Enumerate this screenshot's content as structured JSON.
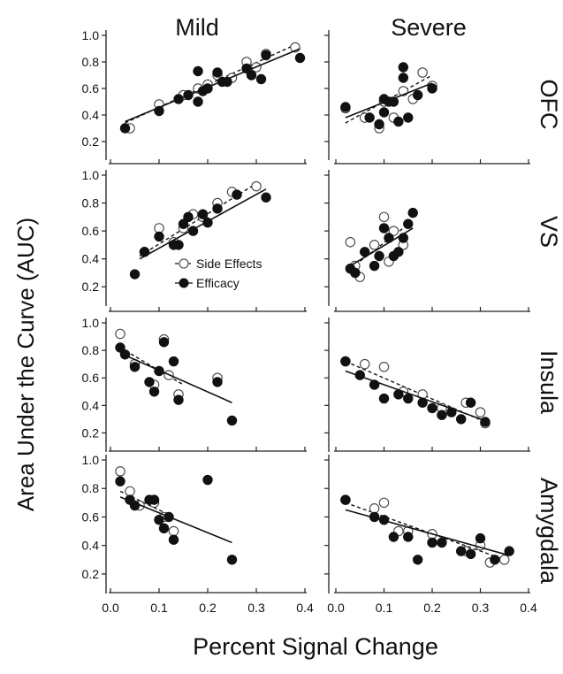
{
  "figure": {
    "column_titles": [
      "Mild",
      "Severe"
    ],
    "row_labels": [
      "OFC",
      "VS",
      "Insula",
      "Amygdala"
    ],
    "ylabel": "Area Under the Curve (AUC)",
    "xlabel": "Percent Signal Change",
    "legend": [
      {
        "label": "Side Effects",
        "marker": "open-circle",
        "line": "dashed"
      },
      {
        "label": "Efficacy",
        "marker": "filled-circle",
        "line": "solid"
      }
    ],
    "y_ticks": [
      "0.2",
      "0.4",
      "0.6",
      "0.8",
      "1.0"
    ],
    "x_ticks": [
      "0.0",
      "0.1",
      "0.2",
      "0.3",
      "0.4"
    ],
    "colors": {
      "efficacy": "#111111",
      "side_effects_fill": "#ffffff",
      "axis": "#222222"
    }
  },
  "chart_data": [
    {
      "type": "scatter",
      "column": "Mild",
      "row": "OFC",
      "xlim": [
        0,
        0.4
      ],
      "ylim": [
        0.1,
        1.0
      ],
      "series": [
        {
          "name": "Side Effects",
          "x": [
            0.04,
            0.1,
            0.15,
            0.18,
            0.2,
            0.22,
            0.25,
            0.28,
            0.3,
            0.32,
            0.38
          ],
          "y": [
            0.3,
            0.48,
            0.55,
            0.6,
            0.63,
            0.7,
            0.68,
            0.8,
            0.76,
            0.86,
            0.91
          ],
          "fit": [
            [
              0.03,
              0.34
            ],
            [
              0.38,
              0.93
            ]
          ]
        },
        {
          "name": "Efficacy",
          "x": [
            0.03,
            0.1,
            0.14,
            0.16,
            0.18,
            0.18,
            0.19,
            0.2,
            0.22,
            0.23,
            0.24,
            0.28,
            0.29,
            0.31,
            0.32,
            0.39
          ],
          "y": [
            0.3,
            0.43,
            0.52,
            0.55,
            0.5,
            0.73,
            0.58,
            0.6,
            0.72,
            0.65,
            0.65,
            0.75,
            0.7,
            0.67,
            0.85,
            0.83
          ],
          "fit": [
            [
              0.03,
              0.35
            ],
            [
              0.39,
              0.9
            ]
          ]
        }
      ]
    },
    {
      "type": "scatter",
      "column": "Severe",
      "row": "OFC",
      "xlim": [
        0,
        0.4
      ],
      "ylim": [
        0.1,
        1.0
      ],
      "series": [
        {
          "name": "Side Effects",
          "x": [
            0.02,
            0.06,
            0.09,
            0.1,
            0.12,
            0.14,
            0.16,
            0.18,
            0.2
          ],
          "y": [
            0.45,
            0.38,
            0.3,
            0.5,
            0.38,
            0.58,
            0.52,
            0.72,
            0.62
          ],
          "fit": [
            [
              0.02,
              0.34
            ],
            [
              0.2,
              0.7
            ]
          ]
        },
        {
          "name": "Efficacy",
          "x": [
            0.02,
            0.07,
            0.09,
            0.1,
            0.1,
            0.11,
            0.12,
            0.13,
            0.14,
            0.14,
            0.15,
            0.17,
            0.2
          ],
          "y": [
            0.46,
            0.38,
            0.33,
            0.42,
            0.52,
            0.5,
            0.5,
            0.35,
            0.68,
            0.76,
            0.38,
            0.55,
            0.6
          ],
          "fit": [
            [
              0.02,
              0.38
            ],
            [
              0.2,
              0.64
            ]
          ]
        }
      ]
    },
    {
      "type": "scatter",
      "column": "Mild",
      "row": "VS",
      "xlim": [
        0,
        0.4
      ],
      "ylim": [
        0.1,
        1.0
      ],
      "series": [
        {
          "name": "Side Effects",
          "x": [
            0.07,
            0.1,
            0.13,
            0.15,
            0.17,
            0.19,
            0.22,
            0.25,
            0.3
          ],
          "y": [
            0.45,
            0.62,
            0.52,
            0.62,
            0.72,
            0.7,
            0.8,
            0.88,
            0.92
          ],
          "fit": [
            [
              0.06,
              0.42
            ],
            [
              0.3,
              0.94
            ]
          ]
        },
        {
          "name": "Efficacy",
          "x": [
            0.05,
            0.07,
            0.1,
            0.13,
            0.14,
            0.15,
            0.16,
            0.17,
            0.19,
            0.2,
            0.22,
            0.26,
            0.32
          ],
          "y": [
            0.29,
            0.45,
            0.56,
            0.5,
            0.5,
            0.65,
            0.7,
            0.6,
            0.72,
            0.66,
            0.76,
            0.86,
            0.84
          ],
          "fit": [
            [
              0.06,
              0.4
            ],
            [
              0.32,
              0.9
            ]
          ]
        }
      ]
    },
    {
      "type": "scatter",
      "column": "Severe",
      "row": "VS",
      "xlim": [
        0,
        0.4
      ],
      "ylim": [
        0.1,
        1.0
      ],
      "series": [
        {
          "name": "Side Effects",
          "x": [
            0.03,
            0.04,
            0.05,
            0.08,
            0.1,
            0.11,
            0.12,
            0.14
          ],
          "y": [
            0.52,
            0.35,
            0.27,
            0.5,
            0.7,
            0.38,
            0.6,
            0.5
          ],
          "fit": [
            [
              0.03,
              0.33
            ],
            [
              0.14,
              0.62
            ]
          ]
        },
        {
          "name": "Efficacy",
          "x": [
            0.03,
            0.04,
            0.06,
            0.08,
            0.09,
            0.1,
            0.11,
            0.12,
            0.13,
            0.14,
            0.15,
            0.16
          ],
          "y": [
            0.33,
            0.3,
            0.45,
            0.35,
            0.42,
            0.62,
            0.55,
            0.42,
            0.45,
            0.55,
            0.65,
            0.73
          ],
          "fit": [
            [
              0.03,
              0.35
            ],
            [
              0.16,
              0.62
            ]
          ]
        }
      ]
    },
    {
      "type": "scatter",
      "column": "Mild",
      "row": "Insula",
      "xlim": [
        0,
        0.4
      ],
      "ylim": [
        0.1,
        1.0
      ],
      "series": [
        {
          "name": "Side Effects",
          "x": [
            0.02,
            0.05,
            0.09,
            0.11,
            0.12,
            0.14,
            0.22
          ],
          "y": [
            0.92,
            0.7,
            0.55,
            0.88,
            0.62,
            0.48,
            0.6
          ],
          "fit": [
            [
              0.02,
              0.82
            ],
            [
              0.15,
              0.55
            ]
          ]
        },
        {
          "name": "Efficacy",
          "x": [
            0.02,
            0.03,
            0.05,
            0.08,
            0.09,
            0.1,
            0.11,
            0.13,
            0.14,
            0.22,
            0.25
          ],
          "y": [
            0.82,
            0.77,
            0.68,
            0.57,
            0.5,
            0.65,
            0.86,
            0.72,
            0.44,
            0.57,
            0.29
          ],
          "fit": [
            [
              0.02,
              0.78
            ],
            [
              0.25,
              0.42
            ]
          ]
        }
      ]
    },
    {
      "type": "scatter",
      "column": "Severe",
      "row": "Insula",
      "xlim": [
        0,
        0.4
      ],
      "ylim": [
        0.1,
        1.0
      ],
      "series": [
        {
          "name": "Side Effects",
          "x": [
            0.02,
            0.06,
            0.1,
            0.14,
            0.18,
            0.22,
            0.27,
            0.3,
            0.31
          ],
          "y": [
            0.72,
            0.7,
            0.68,
            0.5,
            0.48,
            0.38,
            0.42,
            0.35,
            0.27
          ],
          "fit": [
            [
              0.02,
              0.72
            ],
            [
              0.31,
              0.28
            ]
          ]
        },
        {
          "name": "Efficacy",
          "x": [
            0.02,
            0.05,
            0.08,
            0.1,
            0.13,
            0.15,
            0.18,
            0.2,
            0.22,
            0.24,
            0.26,
            0.28,
            0.31
          ],
          "y": [
            0.72,
            0.62,
            0.55,
            0.45,
            0.48,
            0.45,
            0.42,
            0.38,
            0.33,
            0.35,
            0.3,
            0.42,
            0.28
          ],
          "fit": [
            [
              0.02,
              0.65
            ],
            [
              0.31,
              0.29
            ]
          ]
        }
      ]
    },
    {
      "type": "scatter",
      "column": "Mild",
      "row": "Amygdala",
      "xlim": [
        0,
        0.4
      ],
      "ylim": [
        0.1,
        1.0
      ],
      "series": [
        {
          "name": "Side Effects",
          "x": [
            0.02,
            0.04,
            0.06,
            0.09,
            0.11,
            0.13
          ],
          "y": [
            0.92,
            0.78,
            0.68,
            0.7,
            0.6,
            0.5
          ],
          "fit": [
            [
              0.02,
              0.78
            ],
            [
              0.13,
              0.6
            ]
          ]
        },
        {
          "name": "Efficacy",
          "x": [
            0.02,
            0.04,
            0.05,
            0.08,
            0.09,
            0.1,
            0.11,
            0.12,
            0.13,
            0.2,
            0.25
          ],
          "y": [
            0.85,
            0.72,
            0.68,
            0.72,
            0.72,
            0.58,
            0.52,
            0.6,
            0.44,
            0.86,
            0.3
          ],
          "fit": [
            [
              0.02,
              0.74
            ],
            [
              0.25,
              0.42
            ]
          ]
        }
      ]
    },
    {
      "type": "scatter",
      "column": "Severe",
      "row": "Amygdala",
      "xlim": [
        0,
        0.4
      ],
      "ylim": [
        0.1,
        1.0
      ],
      "series": [
        {
          "name": "Side Effects",
          "x": [
            0.02,
            0.08,
            0.1,
            0.13,
            0.15,
            0.2,
            0.27,
            0.3,
            0.32,
            0.35
          ],
          "y": [
            0.72,
            0.66,
            0.7,
            0.5,
            0.5,
            0.48,
            0.36,
            0.4,
            0.28,
            0.3
          ],
          "fit": [
            [
              0.02,
              0.7
            ],
            [
              0.35,
              0.3
            ]
          ]
        },
        {
          "name": "Efficacy",
          "x": [
            0.02,
            0.08,
            0.1,
            0.12,
            0.15,
            0.17,
            0.2,
            0.22,
            0.26,
            0.28,
            0.3,
            0.33,
            0.36
          ],
          "y": [
            0.72,
            0.6,
            0.58,
            0.46,
            0.46,
            0.3,
            0.42,
            0.42,
            0.36,
            0.34,
            0.45,
            0.3,
            0.36
          ],
          "fit": [
            [
              0.02,
              0.65
            ],
            [
              0.36,
              0.33
            ]
          ]
        }
      ]
    }
  ]
}
